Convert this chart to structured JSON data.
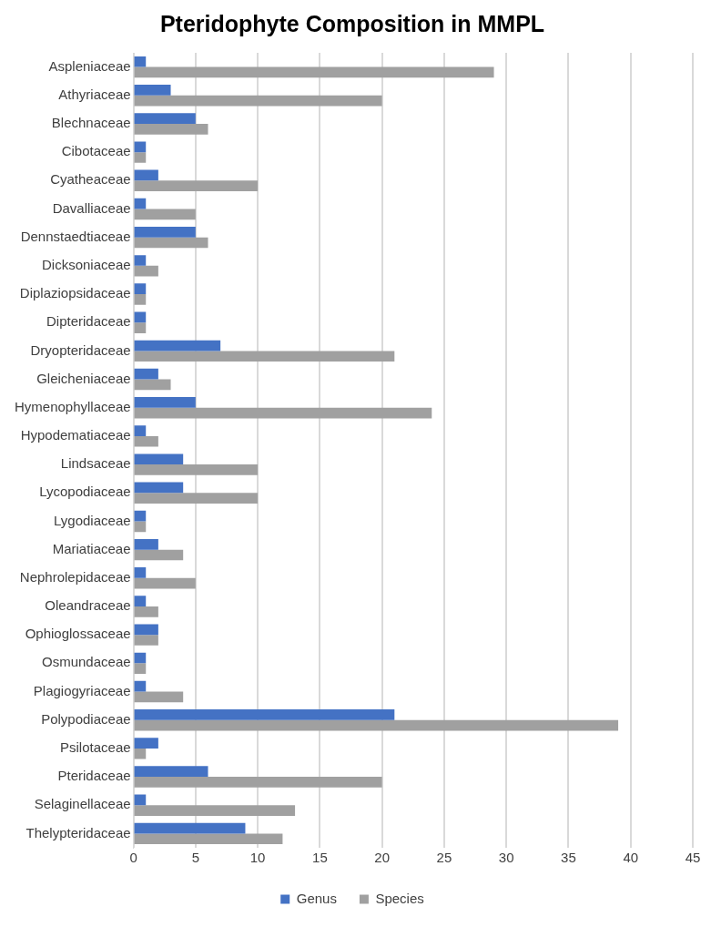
{
  "chart_data": {
    "type": "bar",
    "orientation": "horizontal",
    "title": "Pteridophyte Composition in MMPL",
    "categories": [
      "Aspleniaceae",
      "Athyriaceae",
      "Blechnaceae",
      "Cibotaceae",
      "Cyatheaceae",
      "Davalliaceae",
      "Dennstaedtiaceae",
      "Dicksoniaceae",
      "Diplaziopsidaceae",
      "Dipteridaceae",
      "Dryopteridaceae",
      "Gleicheniaceae",
      "Hymenophyllaceae",
      "Hypodematiaceae",
      "Lindsaceae",
      "Lycopodiaceae",
      "Lygodiaceae",
      "Mariatiaceae",
      "Nephrolepidaceae",
      "Oleandraceae",
      "Ophioglossaceae",
      "Osmundaceae",
      "Plagiogyriaceae",
      "Polypodiaceae",
      "Psilotaceae",
      "Pteridaceae",
      "Selaginellaceae",
      "Thelypteridaceae"
    ],
    "series": [
      {
        "name": "Genus",
        "color": "#4472c4",
        "values": [
          1,
          3,
          5,
          1,
          2,
          1,
          5,
          1,
          1,
          1,
          7,
          2,
          5,
          1,
          4,
          4,
          1,
          2,
          1,
          1,
          2,
          1,
          1,
          21,
          2,
          6,
          1,
          9
        ]
      },
      {
        "name": "Species",
        "color": "#a0a0a0",
        "values": [
          29,
          20,
          6,
          1,
          10,
          5,
          6,
          2,
          1,
          1,
          21,
          3,
          24,
          2,
          10,
          10,
          1,
          4,
          5,
          2,
          2,
          1,
          4,
          39,
          1,
          20,
          13,
          12
        ]
      }
    ],
    "xlim": [
      0,
      45
    ],
    "xticks": [
      0,
      5,
      10,
      15,
      20,
      25,
      30,
      35,
      40,
      45
    ],
    "grid": "x",
    "legend": "bottom"
  }
}
